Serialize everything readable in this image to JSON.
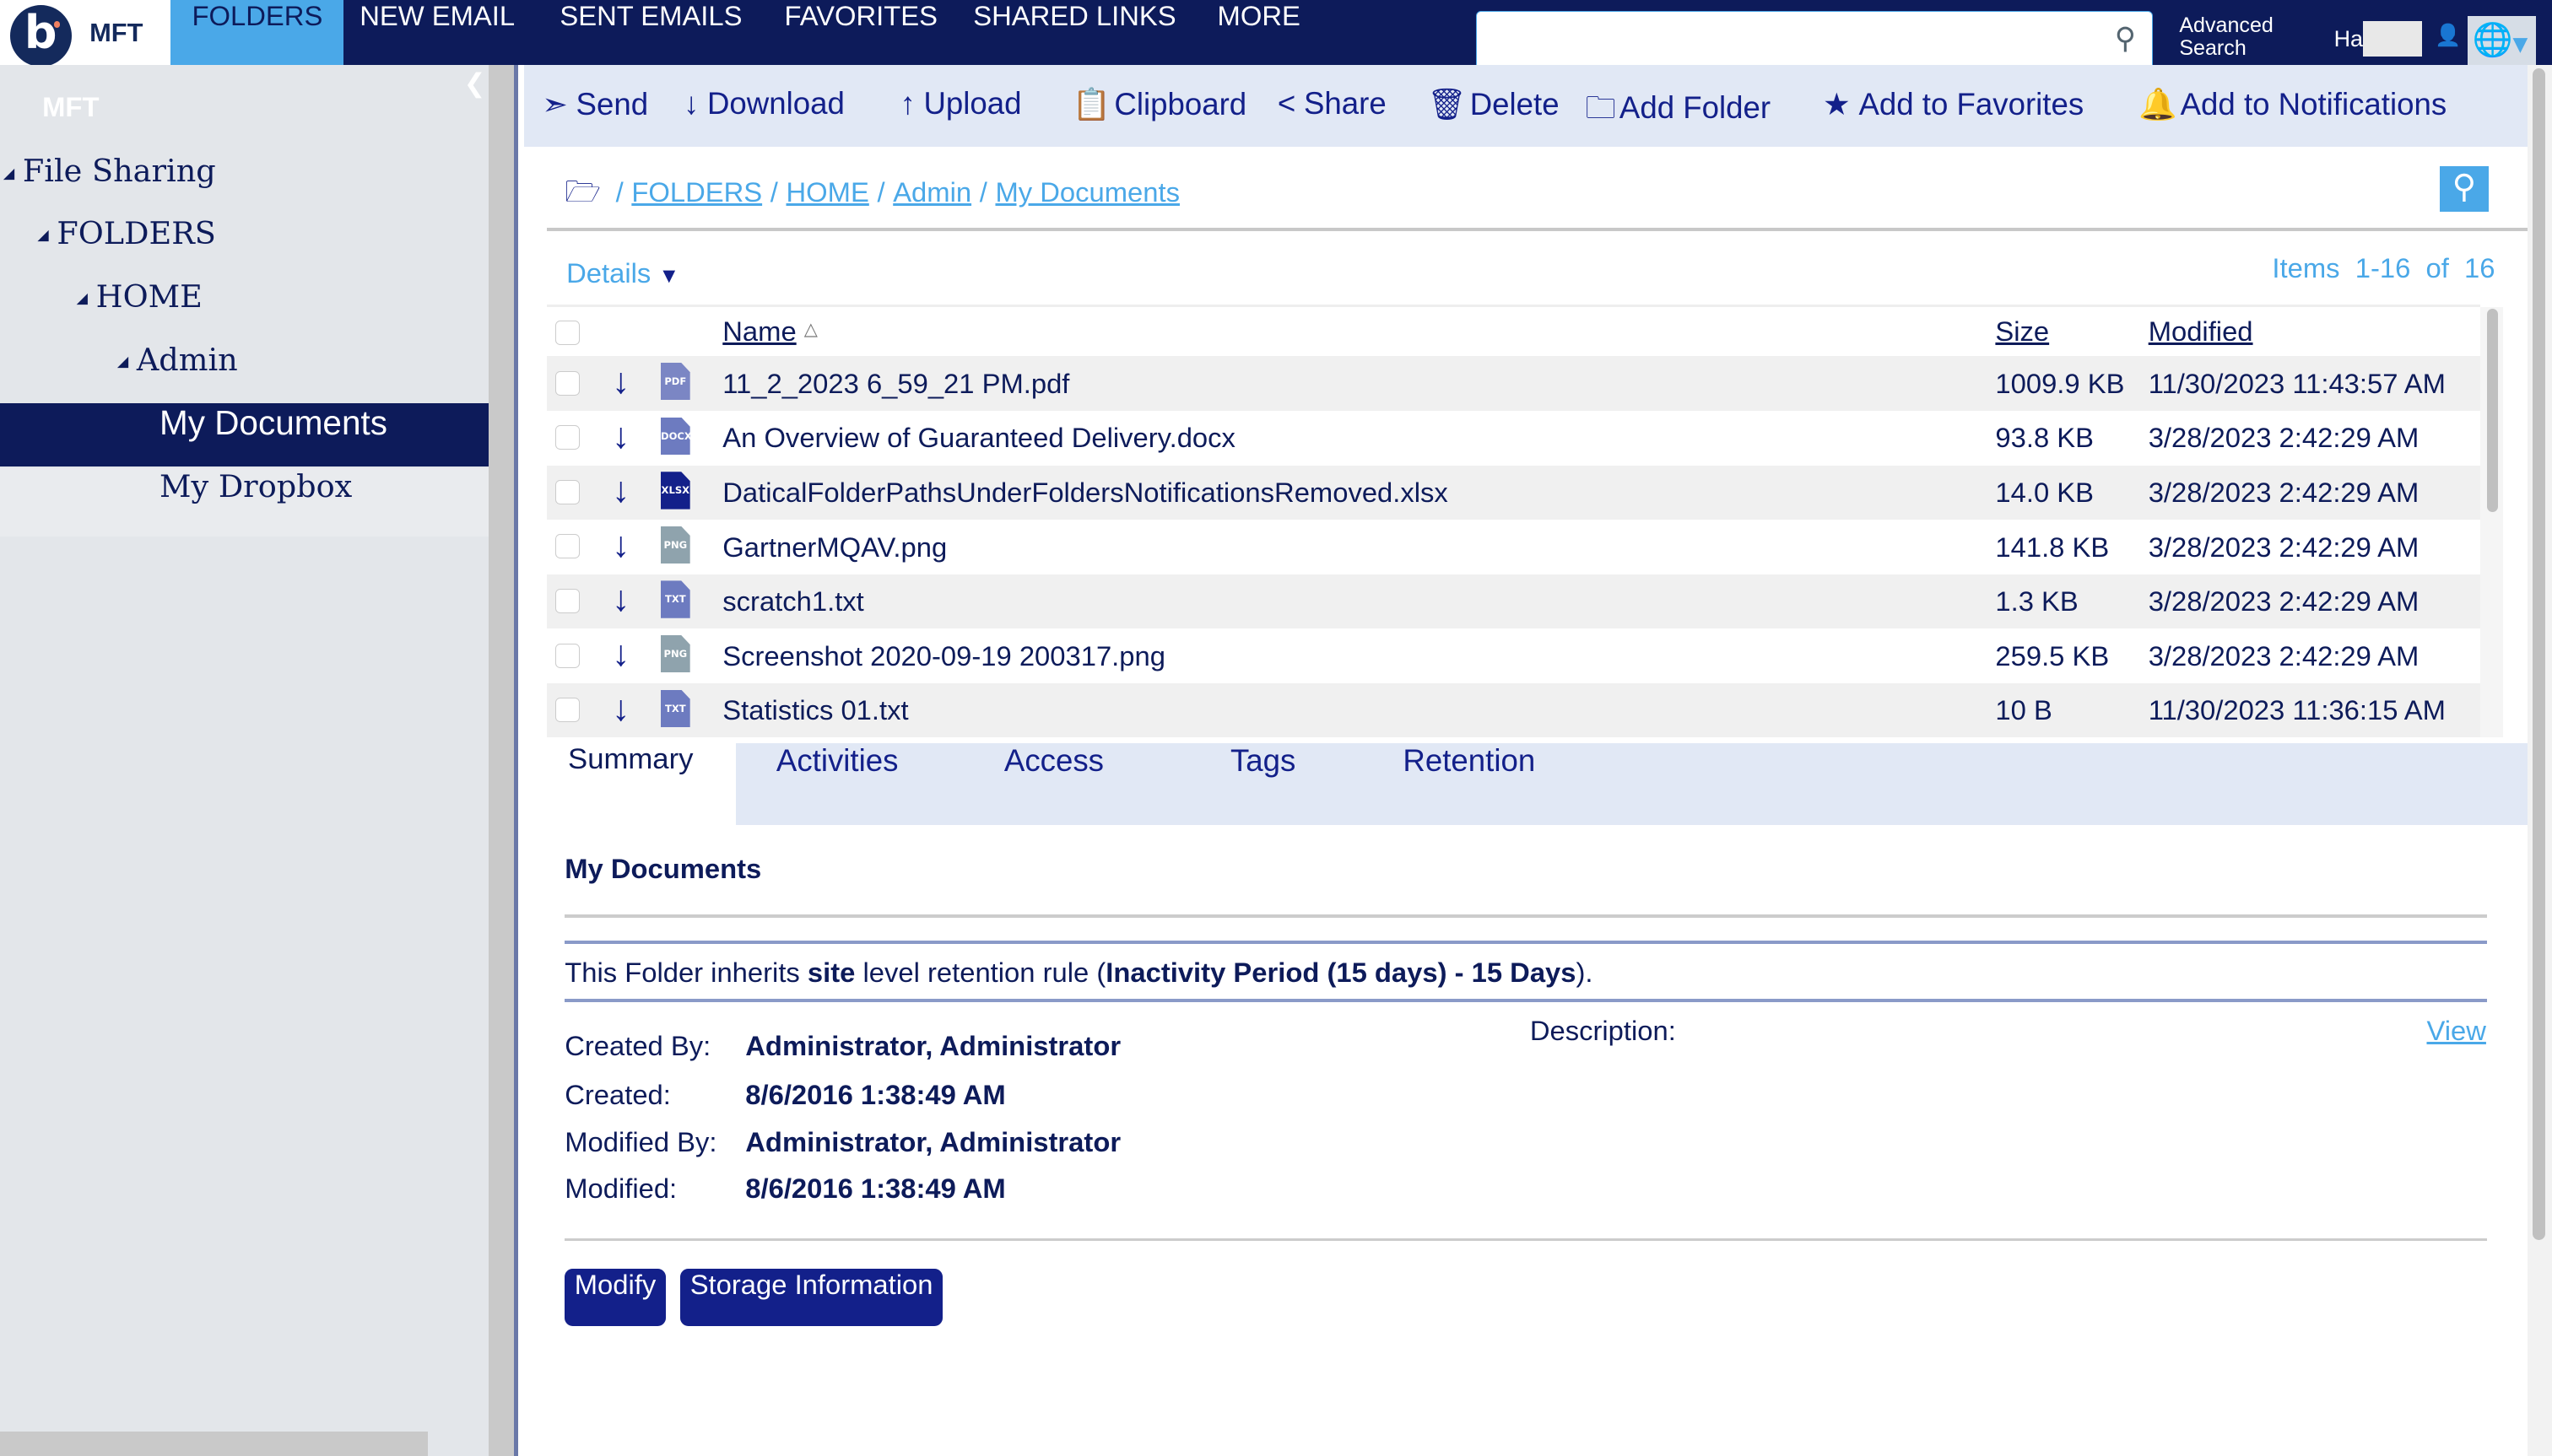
{
  "header": {
    "logo_text": "MFT",
    "nav": [
      {
        "label": "FOLDERS",
        "active": true
      },
      {
        "label": "NEW EMAIL"
      },
      {
        "label": "SENT EMAILS"
      },
      {
        "label": "FAVORITES"
      },
      {
        "label": "SHARED LINKS"
      },
      {
        "label": "MORE"
      }
    ],
    "search_value": "",
    "advanced_search": "Advanced Search",
    "user_name": "Ha"
  },
  "sidebar": {
    "title": "MFT",
    "items": [
      {
        "label": "File Sharing"
      },
      {
        "label": "FOLDERS"
      },
      {
        "label": "HOME"
      },
      {
        "label": "Admin"
      },
      {
        "label": "My Documents",
        "selected": true
      },
      {
        "label": "My Dropbox"
      }
    ]
  },
  "toolbar": {
    "send": "Send",
    "download": "Download",
    "upload": "Upload",
    "clipboard": "Clipboard",
    "share": "Share",
    "delete": "Delete",
    "add_folder": "Add Folder",
    "add_favorites": "Add to Favorites",
    "add_notifications": "Add to Notifications"
  },
  "breadcrumb": [
    "FOLDERS",
    "HOME",
    "Admin",
    "My Documents"
  ],
  "view": {
    "details": "Details",
    "items": "Items  1-16  of  16"
  },
  "table": {
    "headers": {
      "name": "Name",
      "size": "Size",
      "modified": "Modified"
    },
    "rows": [
      {
        "type": "PDF",
        "color": "#7b86c4",
        "name": "11_2_2023 6_59_21 PM.pdf",
        "size": "1009.9 KB",
        "modified": "11/30/2023 11:43:57 AM"
      },
      {
        "type": "DOCX",
        "color": "#6d7bc0",
        "name": "An Overview of Guaranteed Delivery.docx",
        "size": "93.8 KB",
        "modified": "3/28/2023 2:42:29 AM"
      },
      {
        "type": "XLSX",
        "color": "#13208a",
        "name": "DaticalFolderPathsUnderFoldersNotificationsRemoved.xlsx",
        "size": "14.0 KB",
        "modified": "3/28/2023 2:42:29 AM"
      },
      {
        "type": "PNG",
        "color": "#8fa3ad",
        "name": "GartnerMQAV.png",
        "size": "141.8 KB",
        "modified": "3/28/2023 2:42:29 AM"
      },
      {
        "type": "TXT",
        "color": "#6d7bc0",
        "name": "scratch1.txt",
        "size": "1.3 KB",
        "modified": "3/28/2023 2:42:29 AM"
      },
      {
        "type": "PNG",
        "color": "#8fa3ad",
        "name": "Screenshot 2020-09-19 200317.png",
        "size": "259.5 KB",
        "modified": "3/28/2023 2:42:29 AM"
      },
      {
        "type": "TXT",
        "color": "#6d7bc0",
        "name": "Statistics 01.txt",
        "size": "10 B",
        "modified": "11/30/2023 11:36:15 AM"
      }
    ]
  },
  "tabs": [
    "Summary",
    "Activities",
    "Access",
    "Tags",
    "Retention"
  ],
  "summary": {
    "title": "My Documents",
    "retention": {
      "pre": "This Folder inherits ",
      "site": "site",
      "mid": " level retention rule (",
      "rule": "Inactivity Period (15 days) - 15 Days",
      "post": ")."
    },
    "fields": [
      {
        "label": "Created By:",
        "value": "Administrator, Administrator"
      },
      {
        "label": "Created:",
        "value": "8/6/2016 1:38:49 AM"
      },
      {
        "label": "Modified By:",
        "value": "Administrator, Administrator"
      },
      {
        "label": "Modified:",
        "value": "8/6/2016 1:38:49 AM"
      }
    ],
    "description_label": "Description:",
    "view_link": "View",
    "modify": "Modify",
    "storage": "Storage Information"
  },
  "colors": {
    "navy": "#0d1b5a",
    "accent": "#4aa8e8",
    "button": "#13208a",
    "toolbar_bg": "#e1e8f5"
  }
}
